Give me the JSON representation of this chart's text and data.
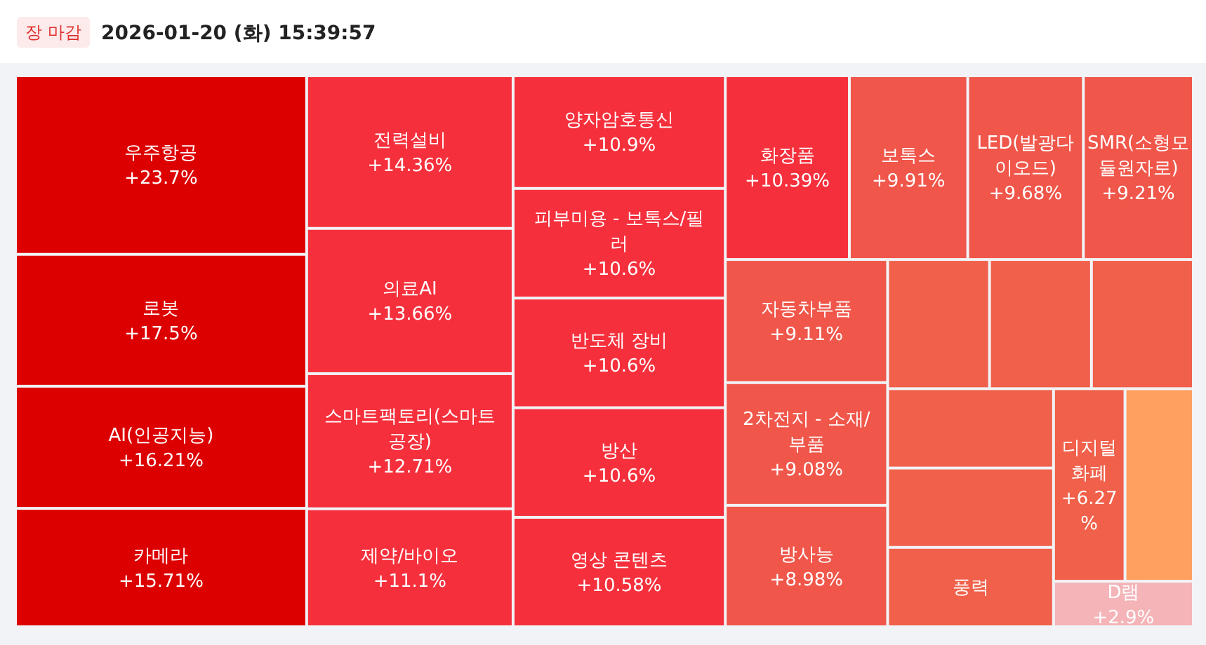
{
  "chart_data": {
    "type": "other",
    "title": "2026-01-20 (화) 15:39:57",
    "annotations": [
      "장 마감"
    ],
    "categories": [
      "우주항공",
      "로봇",
      "AI(인공지능)",
      "카메라",
      "전력설비",
      "의료AI",
      "스마트팩토리(스마트공장)",
      "제약/바이오",
      "양자암호통신",
      "피부미용 - 보톡스/필러",
      "반도체 장비",
      "방산",
      "영상 콘텐츠",
      "화장품",
      "보톡스",
      "LED(발광다이오드)",
      "SMR(소형모듈원자로)",
      "자동차부품",
      "2차전지 - 소재/부품",
      "방사능",
      null,
      null,
      null,
      null,
      null,
      "풍력",
      "디지털화폐",
      null,
      "D램"
    ],
    "values": [
      23.7,
      17.5,
      16.21,
      15.71,
      14.36,
      13.66,
      12.71,
      11.1,
      10.9,
      10.6,
      10.6,
      10.6,
      10.58,
      10.39,
      9.91,
      9.68,
      9.21,
      9.11,
      9.08,
      8.98,
      null,
      null,
      null,
      null,
      null,
      null,
      6.27,
      null,
      2.9
    ],
    "value_labels": [
      "+23.7%",
      "+17.5%",
      "+16.21%",
      "+15.71%",
      "+14.36%",
      "+13.66%",
      "+12.71%",
      "+11.1%",
      "+10.9%",
      "+10.6%",
      "+10.6%",
      "+10.6%",
      "+10.58%",
      "+10.39%",
      "+9.91%",
      "+9.68%",
      "+9.21%",
      "+9.11%",
      "+9.08%",
      "+8.98%",
      null,
      null,
      null,
      null,
      null,
      null,
      "+6.27%",
      null,
      "+2.9%"
    ],
    "colors": [
      "#dd0000",
      "#dd0000",
      "#dd0000",
      "#dd0000",
      "#f5303c",
      "#f5303c",
      "#f5303c",
      "#f5303c",
      "#f5303c",
      "#f5303c",
      "#f5303c",
      "#f5303c",
      "#f5303c",
      "#f5303c",
      "#f0564a",
      "#f0564a",
      "#f0564a",
      "#f0564a",
      "#f0564a",
      "#f0564a",
      "#f0604a",
      "#f0604a",
      "#f0604a",
      "#f0604a",
      "#f0604a",
      "#f0604a",
      "#f0604a",
      "#ffa060",
      "#f4b4b8"
    ]
  }
}
